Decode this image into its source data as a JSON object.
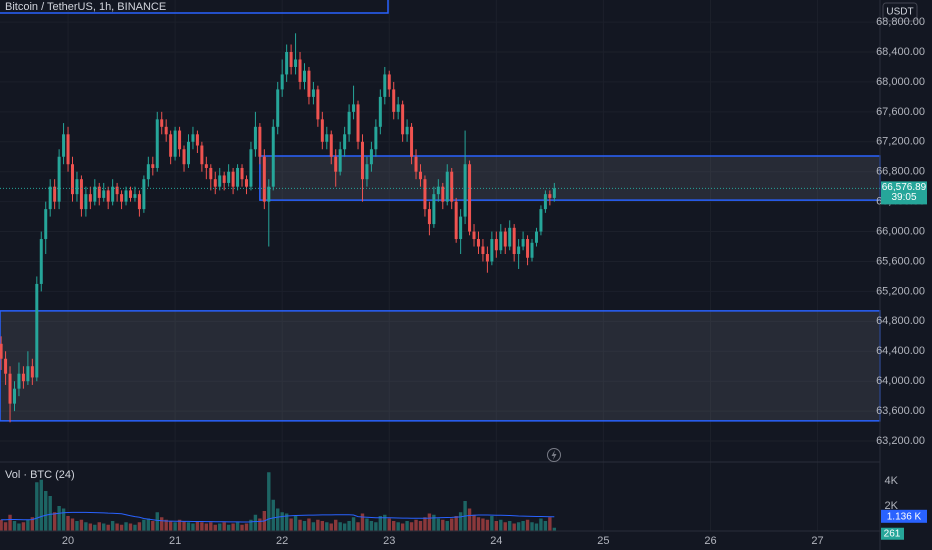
{
  "chart_data": {
    "type": "candlestick",
    "title": "Bitcoin / TetherUS, 1h, BINANCE",
    "currency": "USDT",
    "up_color": "#26a69a",
    "down_color": "#ef5350",
    "xlim": [
      8.75,
      206
    ],
    "xticks": [
      {
        "value": 24,
        "label": "20"
      },
      {
        "value": 48,
        "label": "21"
      },
      {
        "value": 72,
        "label": "22"
      },
      {
        "value": 96,
        "label": "23"
      },
      {
        "value": 120,
        "label": "24"
      },
      {
        "value": 144,
        "label": "25"
      },
      {
        "value": 168,
        "label": "26"
      },
      {
        "value": 192,
        "label": "27"
      }
    ],
    "ylim": [
      62920,
      69095
    ],
    "yticks": [
      {
        "value": 63200,
        "label": "63,200.00"
      },
      {
        "value": 63600,
        "label": "63,600.00"
      },
      {
        "value": 64000,
        "label": "64,000.00"
      },
      {
        "value": 64400,
        "label": "64,400.00"
      },
      {
        "value": 64800,
        "label": "64,800.00"
      },
      {
        "value": 65200,
        "label": "65,200.00"
      },
      {
        "value": 65600,
        "label": "65,600.00"
      },
      {
        "value": 66000,
        "label": "66,000.00"
      },
      {
        "value": 66400,
        "label": "66,400.00"
      },
      {
        "value": 66800,
        "label": "66,800.00"
      },
      {
        "value": 67200,
        "label": "67,200.00"
      },
      {
        "value": 67600,
        "label": "67,600.00"
      },
      {
        "value": 68000,
        "label": "68,000.00"
      },
      {
        "value": 68400,
        "label": "68,400.00"
      },
      {
        "value": 68800,
        "label": "68,800.00"
      }
    ],
    "x": [
      9,
      10,
      11,
      12,
      13,
      14,
      15,
      16,
      17,
      18,
      19,
      20,
      21,
      22,
      23,
      24,
      25,
      26,
      27,
      28,
      29,
      30,
      31,
      32,
      33,
      34,
      35,
      36,
      37,
      38,
      39,
      40,
      41,
      42,
      43,
      44,
      45,
      46,
      47,
      48,
      49,
      50,
      51,
      52,
      53,
      54,
      55,
      56,
      57,
      58,
      59,
      60,
      61,
      62,
      63,
      64,
      65,
      66,
      67,
      68,
      69,
      70,
      71,
      72,
      73,
      74,
      75,
      76,
      77,
      78,
      79,
      80,
      81,
      82,
      83,
      84,
      85,
      86,
      87,
      88,
      89,
      90,
      91,
      92,
      93,
      94,
      95,
      96,
      97,
      98,
      99,
      100,
      101,
      102,
      103,
      104,
      105,
      106,
      107,
      108,
      109,
      110,
      111,
      112,
      113,
      114,
      115,
      116,
      117,
      118,
      119,
      120,
      121,
      122,
      123,
      124,
      125,
      126,
      127,
      128,
      129,
      130,
      131,
      132,
      133
    ],
    "ohlc": [
      [
        64500,
        64600,
        64150,
        64300
      ],
      [
        64300,
        64400,
        63950,
        64100
      ],
      [
        64100,
        64200,
        63450,
        63700
      ],
      [
        63700,
        64000,
        63600,
        63900
      ],
      [
        63900,
        64250,
        63800,
        64100
      ],
      [
        64100,
        64200,
        63900,
        64000
      ],
      [
        64000,
        64400,
        63950,
        64200
      ],
      [
        64200,
        64300,
        63950,
        64050
      ],
      [
        64050,
        65400,
        64000,
        65300
      ],
      [
        65300,
        66000,
        65200,
        65900
      ],
      [
        65900,
        66400,
        65700,
        66300
      ],
      [
        66300,
        66700,
        66200,
        66600
      ],
      [
        66600,
        66700,
        66300,
        66400
      ],
      [
        66400,
        67100,
        66300,
        67000
      ],
      [
        67000,
        67450,
        66900,
        67300
      ],
      [
        67300,
        67400,
        66800,
        66900
      ],
      [
        66900,
        67000,
        66400,
        66500
      ],
      [
        66500,
        66800,
        66400,
        66700
      ],
      [
        66700,
        66750,
        66200,
        66300
      ],
      [
        66300,
        66600,
        66200,
        66500
      ],
      [
        66500,
        66600,
        66300,
        66400
      ],
      [
        66400,
        66700,
        66350,
        66600
      ],
      [
        66600,
        66650,
        66350,
        66450
      ],
      [
        66450,
        66650,
        66400,
        66550
      ],
      [
        66550,
        66600,
        66300,
        66400
      ],
      [
        66400,
        66700,
        66350,
        66600
      ],
      [
        66600,
        66650,
        66400,
        66500
      ],
      [
        66500,
        66550,
        66300,
        66400
      ],
      [
        66400,
        66600,
        66350,
        66550
      ],
      [
        66550,
        66600,
        66400,
        66450
      ],
      [
        66450,
        66600,
        66400,
        66500
      ],
      [
        66500,
        66550,
        66200,
        66300
      ],
      [
        66300,
        66750,
        66250,
        66700
      ],
      [
        66700,
        67000,
        66600,
        66900
      ],
      [
        66900,
        67000,
        66750,
        66850
      ],
      [
        66850,
        67600,
        66800,
        67500
      ],
      [
        67500,
        67600,
        67300,
        67400
      ],
      [
        67400,
        67500,
        67200,
        67300
      ],
      [
        67300,
        67350,
        66900,
        67000
      ],
      [
        67000,
        67400,
        66950,
        67350
      ],
      [
        67350,
        67400,
        67000,
        67100
      ],
      [
        67100,
        67150,
        66800,
        66900
      ],
      [
        66900,
        67300,
        66850,
        67200
      ],
      [
        67200,
        67400,
        67100,
        67300
      ],
      [
        67300,
        67350,
        67050,
        67150
      ],
      [
        67150,
        67200,
        66800,
        66900
      ],
      [
        66900,
        67000,
        66700,
        66850
      ],
      [
        66850,
        66900,
        66550,
        66700
      ],
      [
        66700,
        66800,
        66500,
        66600
      ],
      [
        66600,
        66850,
        66550,
        66750
      ],
      [
        66750,
        66800,
        66550,
        66650
      ],
      [
        66650,
        66900,
        66600,
        66800
      ],
      [
        66800,
        66850,
        66500,
        66600
      ],
      [
        66600,
        66900,
        66550,
        66850
      ],
      [
        66850,
        66900,
        66600,
        66700
      ],
      [
        66700,
        66750,
        66500,
        66600
      ],
      [
        66600,
        67200,
        66550,
        67100
      ],
      [
        67100,
        67600,
        67000,
        67400
      ],
      [
        67400,
        67450,
        66900,
        67000
      ],
      [
        67000,
        67100,
        66300,
        66400
      ],
      [
        66400,
        66700,
        65800,
        66600
      ],
      [
        66600,
        67500,
        66550,
        67400
      ],
      [
        67400,
        68000,
        67300,
        67900
      ],
      [
        67900,
        68300,
        67800,
        68100
      ],
      [
        68100,
        68500,
        68000,
        68400
      ],
      [
        68400,
        68500,
        68100,
        68200
      ],
      [
        68200,
        68650,
        68100,
        68300
      ],
      [
        68300,
        68400,
        67900,
        68000
      ],
      [
        68000,
        68250,
        67900,
        68150
      ],
      [
        68150,
        68200,
        67700,
        67800
      ],
      [
        67800,
        68000,
        67700,
        67900
      ],
      [
        67900,
        67950,
        67400,
        67500
      ],
      [
        67500,
        67600,
        67100,
        67200
      ],
      [
        67200,
        67400,
        67100,
        67300
      ],
      [
        67300,
        67350,
        66900,
        67000
      ],
      [
        67000,
        67100,
        66600,
        66800
      ],
      [
        66800,
        67200,
        66750,
        67100
      ],
      [
        67100,
        67400,
        67000,
        67300
      ],
      [
        67300,
        67700,
        67200,
        67600
      ],
      [
        67600,
        67950,
        67500,
        67700
      ],
      [
        67700,
        67750,
        67100,
        67200
      ],
      [
        67200,
        67300,
        66400,
        66700
      ],
      [
        66700,
        67000,
        66600,
        66900
      ],
      [
        66900,
        67200,
        66800,
        67100
      ],
      [
        67100,
        67500,
        67000,
        67400
      ],
      [
        67400,
        67900,
        67300,
        67800
      ],
      [
        67800,
        68200,
        67700,
        68100
      ],
      [
        68100,
        68150,
        67800,
        67900
      ],
      [
        67900,
        68000,
        67500,
        67600
      ],
      [
        67600,
        67800,
        67500,
        67700
      ],
      [
        67700,
        67750,
        67200,
        67300
      ],
      [
        67300,
        67500,
        67200,
        67400
      ],
      [
        67400,
        67450,
        66900,
        67000
      ],
      [
        67000,
        67100,
        66700,
        66800
      ],
      [
        66800,
        66900,
        66600,
        66700
      ],
      [
        66700,
        66750,
        66200,
        66300
      ],
      [
        66300,
        66400,
        65950,
        66100
      ],
      [
        66100,
        66600,
        66050,
        66500
      ],
      [
        66500,
        66700,
        66400,
        66600
      ],
      [
        66600,
        66650,
        66300,
        66400
      ],
      [
        66400,
        66900,
        66350,
        66800
      ],
      [
        66800,
        66850,
        66300,
        66400
      ],
      [
        66400,
        66450,
        65850,
        65900
      ],
      [
        65900,
        66300,
        65700,
        66200
      ],
      [
        66200,
        67350,
        66100,
        66900
      ],
      [
        66900,
        66950,
        65950,
        66000
      ],
      [
        66000,
        66100,
        65800,
        65900
      ],
      [
        65900,
        66000,
        65700,
        65800
      ],
      [
        65800,
        65900,
        65600,
        65700
      ],
      [
        65700,
        65800,
        65450,
        65600
      ],
      [
        65600,
        66000,
        65550,
        65900
      ],
      [
        65900,
        66000,
        65650,
        65750
      ],
      [
        65750,
        66100,
        65700,
        66000
      ],
      [
        66000,
        66050,
        65700,
        65800
      ],
      [
        65800,
        66150,
        65750,
        66050
      ],
      [
        66050,
        66100,
        65600,
        65700
      ],
      [
        65700,
        65900,
        65500,
        65800
      ],
      [
        65800,
        66000,
        65750,
        65900
      ],
      [
        65900,
        65950,
        65550,
        65650
      ],
      [
        65650,
        65900,
        65600,
        65850
      ],
      [
        65850,
        66050,
        65800,
        66000
      ],
      [
        66000,
        66350,
        65950,
        66300
      ],
      [
        66300,
        66550,
        66250,
        66500
      ],
      [
        66500,
        66550,
        66350,
        66450
      ],
      [
        66450,
        66650,
        66400,
        66576.89
      ]
    ],
    "last_price_label": "66,576.89",
    "countdown": "39:05",
    "zones": [
      {
        "x_start": 67,
        "y": [
          66420,
          67010
        ]
      },
      {
        "x_start": 8.75,
        "y": [
          63470,
          64940
        ]
      }
    ],
    "volume": {
      "name": "Vol · BTC (24)",
      "vlim": [
        0,
        5520
      ],
      "vticks": [
        {
          "value": 2000,
          "label": "2K"
        },
        {
          "value": 4000,
          "label": "4K"
        }
      ],
      "values": [
        900,
        700,
        1300,
        800,
        600,
        700,
        900,
        1100,
        3900,
        4100,
        3200,
        2800,
        1500,
        2000,
        1800,
        1200,
        1000,
        800,
        900,
        700,
        600,
        500,
        700,
        600,
        500,
        800,
        600,
        500,
        700,
        600,
        500,
        700,
        900,
        1000,
        800,
        1500,
        1100,
        900,
        800,
        700,
        900,
        800,
        700,
        600,
        800,
        700,
        600,
        700,
        500,
        600,
        700,
        500,
        600,
        700,
        500,
        600,
        900,
        1300,
        1000,
        1600,
        4700,
        2500,
        1800,
        1500,
        1400,
        1000,
        1200,
        900,
        800,
        1000,
        700,
        900,
        800,
        700,
        600,
        900,
        700,
        600,
        800,
        1100,
        700,
        1400,
        1000,
        800,
        700,
        1200,
        1300,
        1000,
        800,
        700,
        600,
        800,
        700,
        900,
        800,
        1100,
        1400,
        1300,
        1000,
        900,
        800,
        1000,
        1200,
        1500,
        2400,
        1800,
        1300,
        1100,
        1000,
        900,
        1200,
        800,
        900,
        700,
        800,
        600,
        700,
        800,
        900,
        700,
        600,
        1000,
        800,
        1100,
        261
      ],
      "ma": [
        900,
        900,
        920,
        920,
        910,
        900,
        900,
        910,
        1030,
        1160,
        1260,
        1340,
        1370,
        1420,
        1460,
        1480,
        1490,
        1490,
        1490,
        1490,
        1480,
        1470,
        1460,
        1450,
        1430,
        1420,
        1400,
        1380,
        1300,
        1220,
        1150,
        1100,
        1000,
        950,
        900,
        850,
        820,
        800,
        790,
        780,
        780,
        770,
        770,
        760,
        760,
        760,
        750,
        750,
        740,
        740,
        740,
        730,
        730,
        730,
        720,
        720,
        730,
        760,
        770,
        800,
        970,
        1050,
        1110,
        1160,
        1200,
        1220,
        1240,
        1250,
        1260,
        1270,
        1270,
        1280,
        1290,
        1290,
        1290,
        1300,
        1300,
        1300,
        1300,
        1280,
        1150,
        1120,
        1100,
        1080,
        1060,
        1060,
        1060,
        1060,
        1050,
        1040,
        1030,
        1030,
        1020,
        1020,
        1020,
        1020,
        1030,
        1050,
        1060,
        1070,
        1080,
        1090,
        1110,
        1130,
        1200,
        1240,
        1260,
        1280,
        1280,
        1280,
        1270,
        1260,
        1260,
        1250,
        1240,
        1220,
        1200,
        1190,
        1180,
        1170,
        1160,
        1160,
        1150,
        1140,
        1136
      ],
      "ma_color": "#2962ff",
      "ma_last_label": "1.136 K"
    }
  }
}
